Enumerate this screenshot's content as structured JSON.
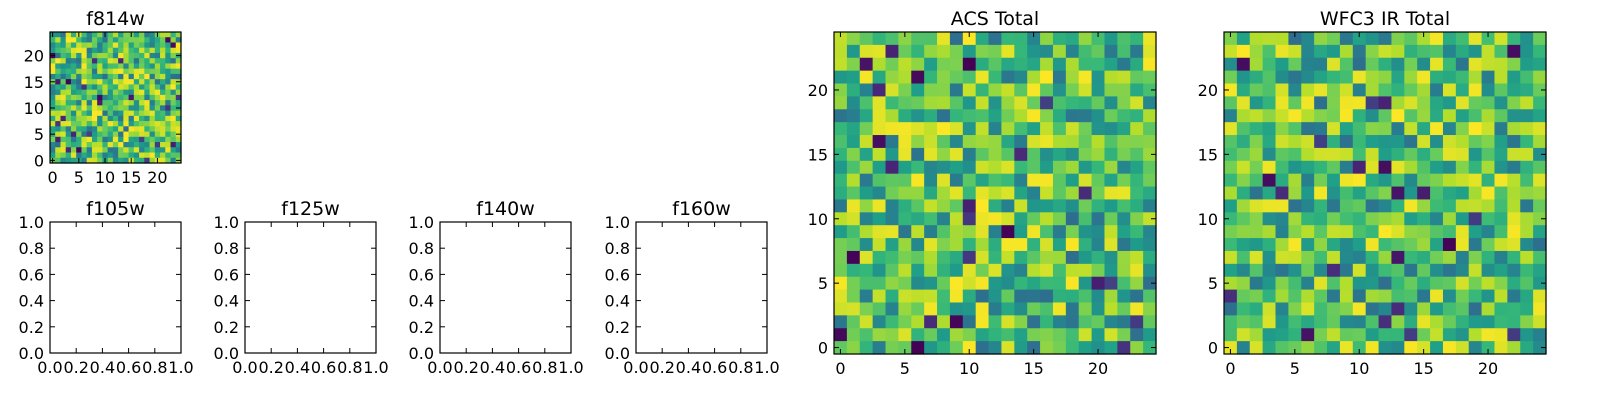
{
  "chart_data": [
    {
      "type": "heatmap",
      "id": "f814w",
      "title": "f814w",
      "xlabel": "",
      "ylabel": "",
      "xlim": [
        -0.5,
        24.5
      ],
      "ylim": [
        -0.5,
        24.5
      ],
      "xticks": [
        0,
        5,
        10,
        15,
        20
      ],
      "yticks": [
        0,
        5,
        10,
        15,
        20
      ],
      "grid_size": 25,
      "colormap": "viridis",
      "value_range": [
        0,
        1
      ],
      "seed": 814
    },
    {
      "type": "line",
      "id": "f105w",
      "title": "f105w",
      "xlabel": "",
      "ylabel": "",
      "xlim": [
        0.0,
        1.0
      ],
      "ylim": [
        0.0,
        1.0
      ],
      "xticks": [
        "0.0",
        "0.2",
        "0.4",
        "0.6",
        "0.8",
        "1.0"
      ],
      "yticks": [
        "0.0",
        "0.2",
        "0.4",
        "0.6",
        "0.8",
        "1.0"
      ],
      "series": []
    },
    {
      "type": "line",
      "id": "f125w",
      "title": "f125w",
      "xlabel": "",
      "ylabel": "",
      "xlim": [
        0.0,
        1.0
      ],
      "ylim": [
        0.0,
        1.0
      ],
      "xticks": [
        "0.0",
        "0.2",
        "0.4",
        "0.6",
        "0.8",
        "1.0"
      ],
      "yticks": [
        "0.0",
        "0.2",
        "0.4",
        "0.6",
        "0.8",
        "1.0"
      ],
      "series": []
    },
    {
      "type": "line",
      "id": "f140w",
      "title": "f140w",
      "xlabel": "",
      "ylabel": "",
      "xlim": [
        0.0,
        1.0
      ],
      "ylim": [
        0.0,
        1.0
      ],
      "xticks": [
        "0.0",
        "0.2",
        "0.4",
        "0.6",
        "0.8",
        "1.0"
      ],
      "yticks": [
        "0.0",
        "0.2",
        "0.4",
        "0.6",
        "0.8",
        "1.0"
      ],
      "series": []
    },
    {
      "type": "line",
      "id": "f160w",
      "title": "f160w",
      "xlabel": "",
      "ylabel": "",
      "xlim": [
        0.0,
        1.0
      ],
      "ylim": [
        0.0,
        1.0
      ],
      "xticks": [
        "0.0",
        "0.2",
        "0.4",
        "0.6",
        "0.8",
        "1.0"
      ],
      "yticks": [
        "0.0",
        "0.2",
        "0.4",
        "0.6",
        "0.8",
        "1.0"
      ],
      "series": []
    },
    {
      "type": "heatmap",
      "id": "acs-total",
      "title": "ACS Total",
      "xlabel": "",
      "ylabel": "",
      "xlim": [
        -0.5,
        24.5
      ],
      "ylim": [
        -0.5,
        24.5
      ],
      "xticks": [
        0,
        5,
        10,
        15,
        20
      ],
      "yticks": [
        0,
        5,
        10,
        15,
        20
      ],
      "grid_size": 25,
      "colormap": "viridis",
      "value_range": [
        0,
        1
      ],
      "seed": 2024
    },
    {
      "type": "heatmap",
      "id": "wfc3-ir-total",
      "title": "WFC3 IR Total",
      "xlabel": "",
      "ylabel": "",
      "xlim": [
        -0.5,
        24.5
      ],
      "ylim": [
        -0.5,
        24.5
      ],
      "xticks": [
        0,
        5,
        10,
        15,
        20
      ],
      "yticks": [
        0,
        5,
        10,
        15,
        20
      ],
      "grid_size": 25,
      "colormap": "viridis",
      "value_range": [
        0,
        1
      ],
      "seed": 3917
    }
  ]
}
